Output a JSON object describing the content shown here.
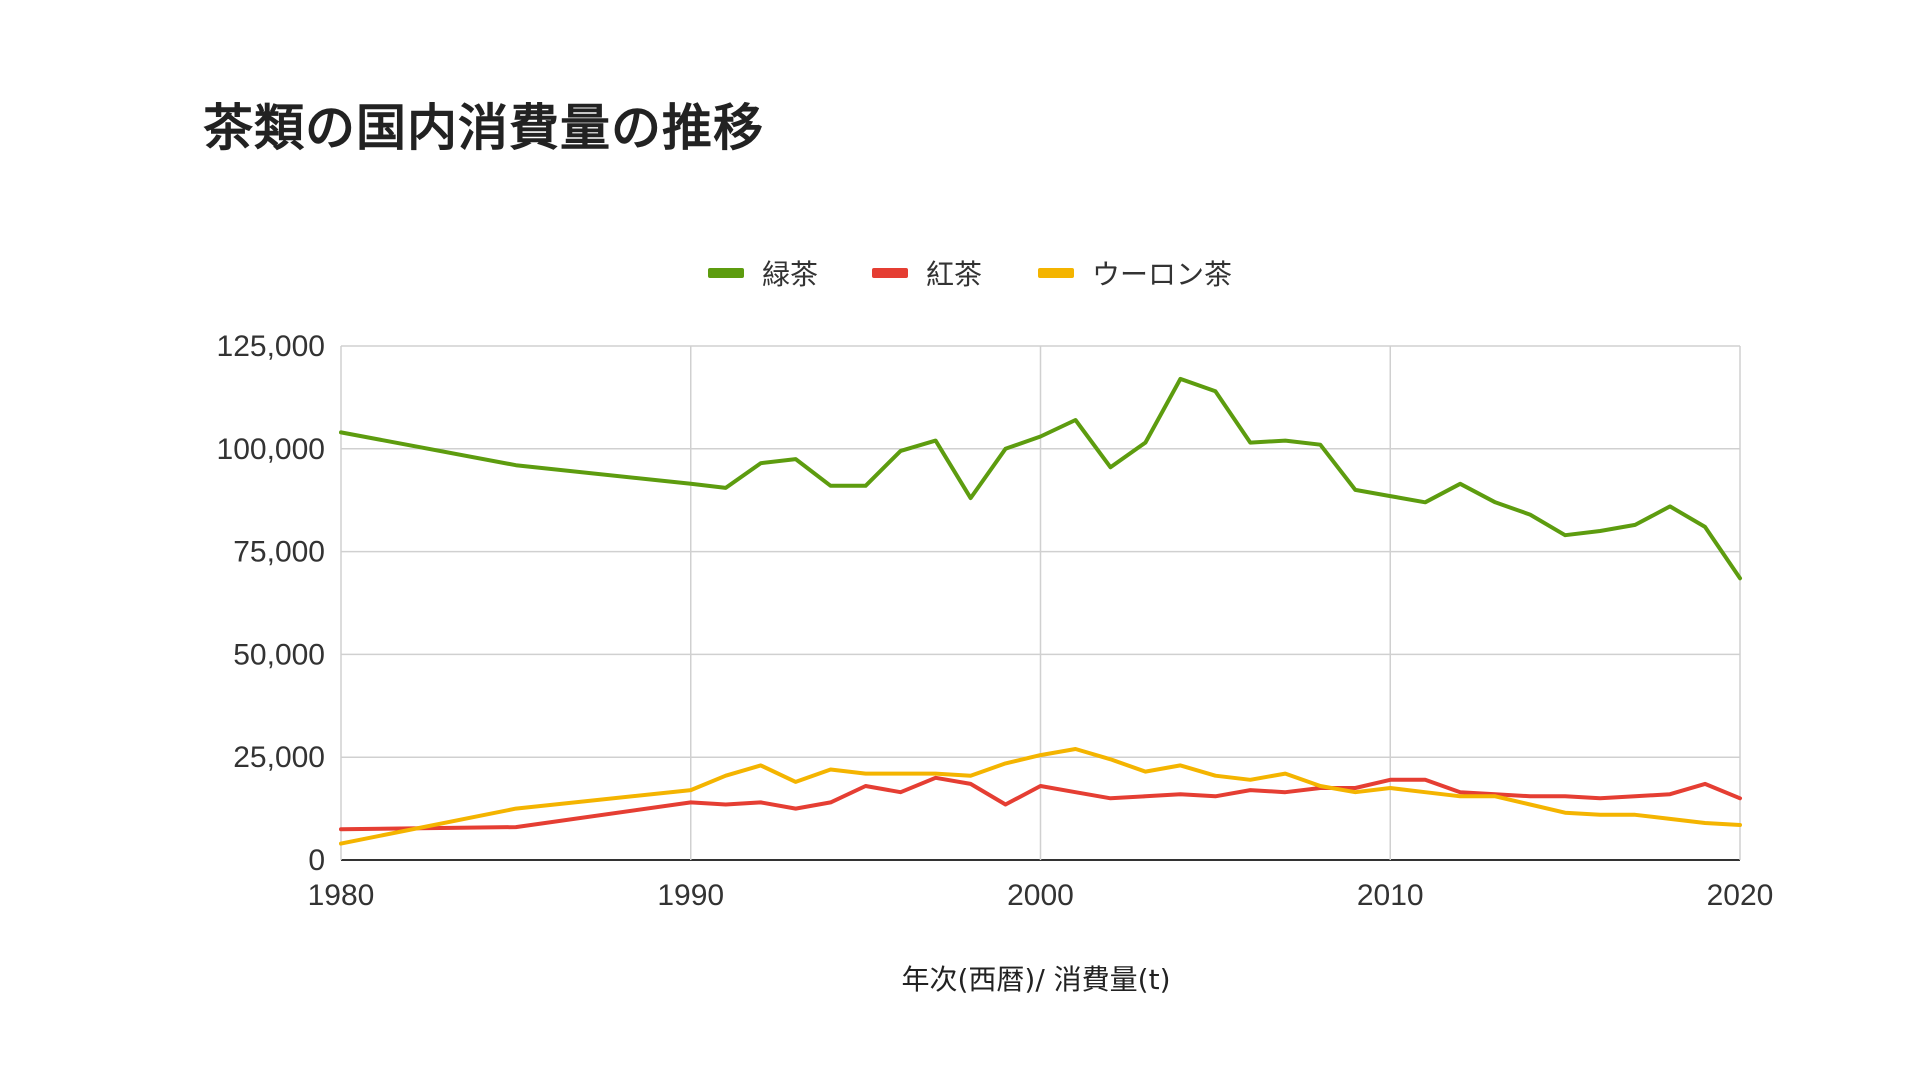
{
  "chart_data": {
    "type": "line",
    "title": "茶類の国内消費量の推移",
    "xlabel": "年次(西暦)/ 消費量(t)",
    "ylabel": "",
    "xlim": [
      1980,
      2020
    ],
    "ylim": [
      0,
      125000
    ],
    "x_ticks": [
      "1980",
      "1990",
      "2000",
      "2010",
      "2020"
    ],
    "y_ticks": [
      "0",
      "25,000",
      "50,000",
      "75,000",
      "100,000",
      "125,000"
    ],
    "grid": true,
    "legend_position": "top",
    "x": [
      1980,
      1985,
      1990,
      1991,
      1992,
      1993,
      1994,
      1995,
      1996,
      1997,
      1998,
      1999,
      2000,
      2001,
      2002,
      2003,
      2004,
      2005,
      2006,
      2007,
      2008,
      2009,
      2010,
      2011,
      2012,
      2013,
      2014,
      2015,
      2016,
      2017,
      2018,
      2019,
      2020
    ],
    "series": [
      {
        "name": "緑茶",
        "color": "#5d9c0f",
        "values": [
          104000,
          96000,
          91500,
          90500,
          96500,
          97500,
          91000,
          91000,
          99500,
          102000,
          88000,
          100000,
          103000,
          107000,
          95500,
          101500,
          117000,
          114000,
          101500,
          102000,
          101000,
          90000,
          88500,
          87000,
          91500,
          87000,
          84000,
          79000,
          80000,
          81500,
          86000,
          81000,
          68500
        ]
      },
      {
        "name": "紅茶",
        "color": "#e53e33",
        "values": [
          7500,
          8000,
          14000,
          13500,
          14000,
          12500,
          14000,
          18000,
          16500,
          20000,
          18500,
          13500,
          18000,
          16500,
          15000,
          15500,
          16000,
          15500,
          17000,
          16500,
          17500,
          17500,
          19500,
          19500,
          16500,
          16000,
          15500,
          15500,
          15000,
          15500,
          16000,
          18500,
          15000
        ]
      },
      {
        "name": "ウーロン茶",
        "color": "#f4b400",
        "values": [
          4000,
          12500,
          17000,
          20500,
          23000,
          19000,
          22000,
          21000,
          21000,
          21000,
          20500,
          23500,
          25500,
          27000,
          24500,
          21500,
          23000,
          20500,
          19500,
          21000,
          18000,
          16500,
          17500,
          16500,
          15500,
          15500,
          13500,
          11500,
          11000,
          11000,
          10000,
          9000,
          8500
        ]
      }
    ]
  }
}
